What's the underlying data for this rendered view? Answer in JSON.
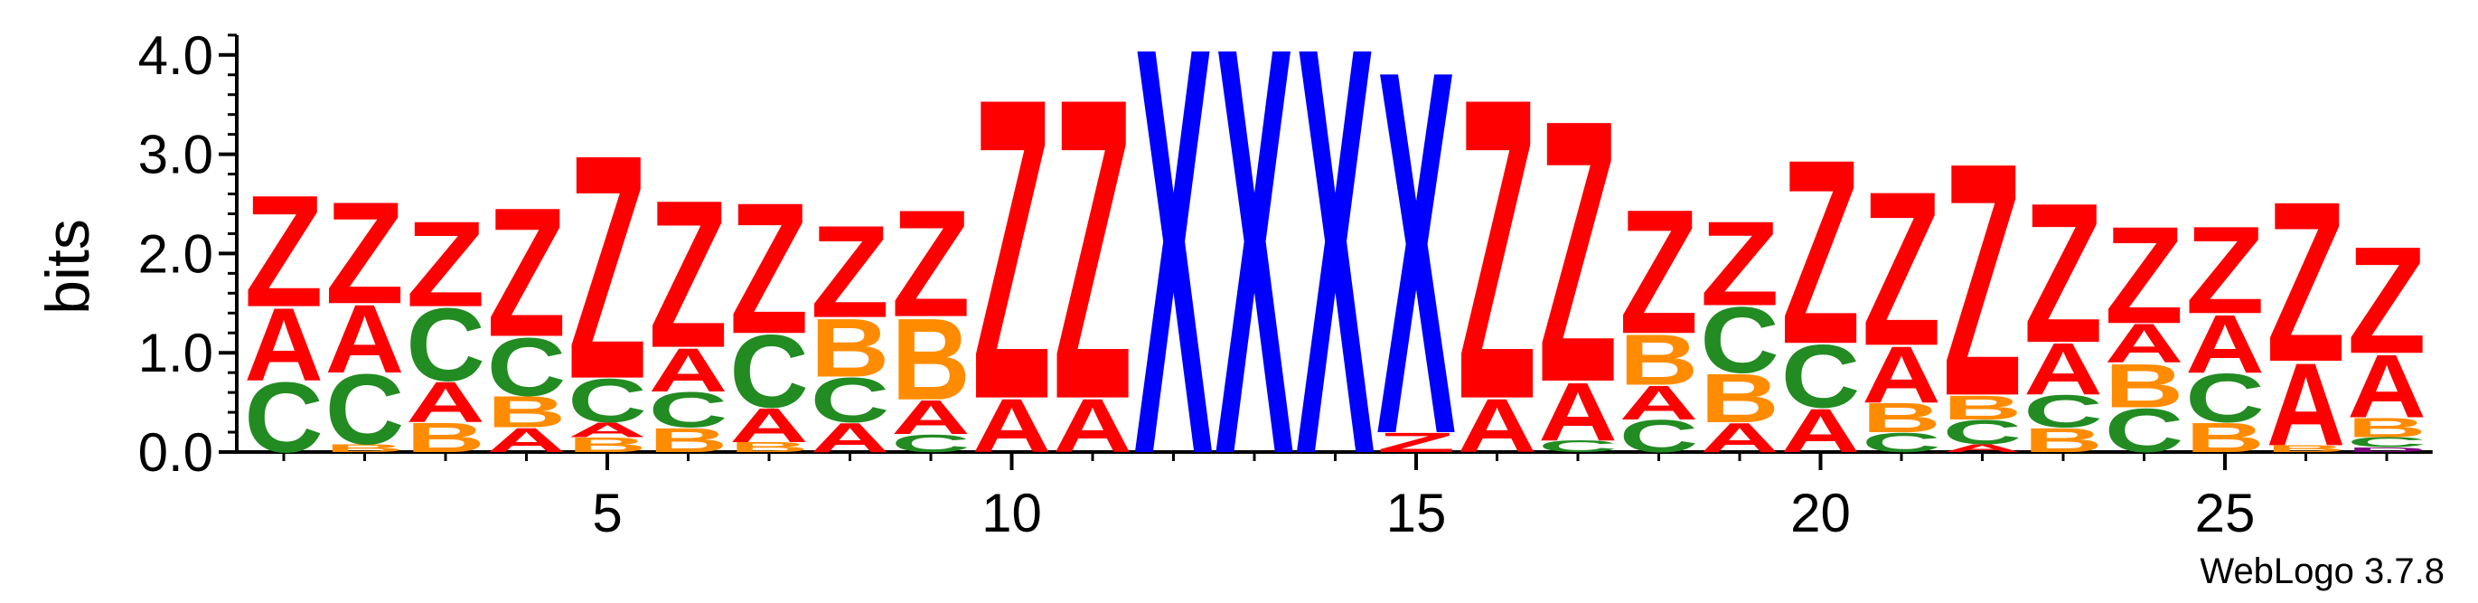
{
  "chart_data": {
    "type": "sequence-logo",
    "ylabel": "bits",
    "ylim": [
      0,
      4.2
    ],
    "y_ticks": [
      "0.0",
      "1.0",
      "2.0",
      "3.0",
      "4.0"
    ],
    "x_ticks": [
      5,
      10,
      15,
      20,
      25
    ],
    "credit": "WebLogo 3.7.8",
    "colors": {
      "Z": "#ff0000",
      "A": "#ff0000",
      "X": "#0000ff",
      "C": "#228b22",
      "B": "#ff8c00",
      "D": "#800080"
    },
    "positions": [
      {
        "pos": 1,
        "stack": [
          [
            "C",
            0.72
          ],
          [
            "A",
            0.75
          ],
          [
            "Z",
            1.15
          ]
        ]
      },
      {
        "pos": 2,
        "stack": [
          [
            "B",
            0.08
          ],
          [
            "C",
            0.72
          ],
          [
            "A",
            0.7
          ],
          [
            "Z",
            1.05
          ]
        ]
      },
      {
        "pos": 3,
        "stack": [
          [
            "B",
            0.3
          ],
          [
            "A",
            0.42
          ],
          [
            "C",
            0.75
          ],
          [
            "Z",
            0.88
          ]
        ]
      },
      {
        "pos": 4,
        "stack": [
          [
            "A",
            0.25
          ],
          [
            "B",
            0.32
          ],
          [
            "C",
            0.6
          ],
          [
            "Z",
            1.33
          ]
        ]
      },
      {
        "pos": 5,
        "stack": [
          [
            "B",
            0.15
          ],
          [
            "A",
            0.15
          ],
          [
            "C",
            0.45
          ],
          [
            "Z",
            2.31
          ]
        ]
      },
      {
        "pos": 6,
        "stack": [
          [
            "B",
            0.25
          ],
          [
            "C",
            0.36
          ],
          [
            "A",
            0.45
          ],
          [
            "Z",
            1.52
          ]
        ]
      },
      {
        "pos": 7,
        "stack": [
          [
            "B",
            0.1
          ],
          [
            "A",
            0.35
          ],
          [
            "C",
            0.75
          ],
          [
            "Z",
            1.35
          ]
        ]
      },
      {
        "pos": 8,
        "stack": [
          [
            "A",
            0.3
          ],
          [
            "C",
            0.46
          ],
          [
            "B",
            0.6
          ],
          [
            "Z",
            0.95
          ]
        ]
      },
      {
        "pos": 9,
        "stack": [
          [
            "C",
            0.18
          ],
          [
            "A",
            0.35
          ],
          [
            "B",
            0.84
          ],
          [
            "Z",
            1.1
          ]
        ]
      },
      {
        "pos": 10,
        "stack": [
          [
            "A",
            0.55
          ],
          [
            "Z",
            3.1
          ]
        ]
      },
      {
        "pos": 11,
        "stack": [
          [
            "A",
            0.55
          ],
          [
            "Z",
            3.1
          ]
        ]
      },
      {
        "pos": 12,
        "stack": [
          [
            "X",
            4.2
          ]
        ]
      },
      {
        "pos": 13,
        "stack": [
          [
            "X",
            4.2
          ]
        ]
      },
      {
        "pos": 14,
        "stack": [
          [
            "X",
            4.2
          ]
        ]
      },
      {
        "pos": 15,
        "stack": [
          [
            "Z",
            0.2
          ],
          [
            "X",
            3.75
          ]
        ]
      },
      {
        "pos": 16,
        "stack": [
          [
            "A",
            0.55
          ],
          [
            "Z",
            3.1
          ]
        ]
      },
      {
        "pos": 17,
        "stack": [
          [
            "C",
            0.12
          ],
          [
            "A",
            0.6
          ],
          [
            "Z",
            2.7
          ]
        ]
      },
      {
        "pos": 18,
        "stack": [
          [
            "C",
            0.33
          ],
          [
            "A",
            0.35
          ],
          [
            "B",
            0.52
          ],
          [
            "Z",
            1.28
          ]
        ]
      },
      {
        "pos": 19,
        "stack": [
          [
            "A",
            0.3
          ],
          [
            "B",
            0.5
          ],
          [
            "C",
            0.68
          ],
          [
            "Z",
            0.87
          ]
        ]
      },
      {
        "pos": 20,
        "stack": [
          [
            "A",
            0.45
          ],
          [
            "C",
            0.65
          ],
          [
            "Z",
            1.9
          ]
        ]
      },
      {
        "pos": 21,
        "stack": [
          [
            "C",
            0.2
          ],
          [
            "B",
            0.3
          ],
          [
            "A",
            0.58
          ],
          [
            "Z",
            1.59
          ]
        ]
      },
      {
        "pos": 22,
        "stack": [
          [
            "A",
            0.08
          ],
          [
            "C",
            0.25
          ],
          [
            "B",
            0.25
          ],
          [
            "Z",
            2.4
          ]
        ]
      },
      {
        "pos": 23,
        "stack": [
          [
            "B",
            0.25
          ],
          [
            "C",
            0.33
          ],
          [
            "A",
            0.53
          ],
          [
            "Z",
            1.44
          ]
        ]
      },
      {
        "pos": 24,
        "stack": [
          [
            "C",
            0.45
          ],
          [
            "B",
            0.45
          ],
          [
            "A",
            0.4
          ],
          [
            "Z",
            1.0
          ]
        ]
      },
      {
        "pos": 25,
        "stack": [
          [
            "B",
            0.3
          ],
          [
            "C",
            0.5
          ],
          [
            "A",
            0.6
          ],
          [
            "Z",
            0.9
          ]
        ]
      },
      {
        "pos": 26,
        "stack": [
          [
            "B",
            0.07
          ],
          [
            "A",
            0.85
          ],
          [
            "Z",
            1.65
          ]
        ]
      },
      {
        "pos": 27,
        "stack": [
          [
            "D",
            0.05
          ],
          [
            "C",
            0.1
          ],
          [
            "B",
            0.2
          ],
          [
            "A",
            0.65
          ],
          [
            "Z",
            1.1
          ]
        ]
      }
    ]
  }
}
